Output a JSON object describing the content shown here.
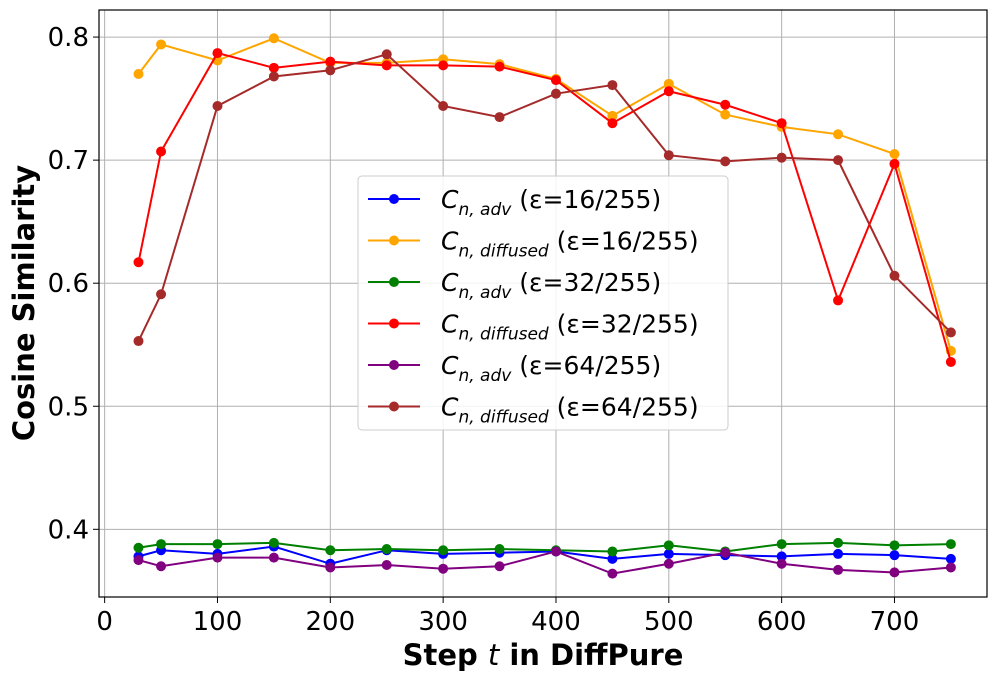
{
  "chart_data": {
    "type": "line",
    "title": "",
    "xlabel_prefix": "Step ",
    "xlabel_var": "t",
    "xlabel_suffix": " in DiffPure",
    "ylabel": "Cosine Similarity",
    "xlim": [
      -5,
      782
    ],
    "ylim": [
      0.345,
      0.822
    ],
    "xticks": [
      0,
      100,
      200,
      300,
      400,
      500,
      600,
      700
    ],
    "yticks": [
      0.4,
      0.5,
      0.6,
      0.7,
      0.8
    ],
    "xtick_labels": [
      "0",
      "100",
      "200",
      "300",
      "400",
      "500",
      "600",
      "700"
    ],
    "ytick_labels": [
      "0.4",
      "0.5",
      "0.6",
      "0.7",
      "0.8"
    ],
    "grid": true,
    "legend_position": "center",
    "x": [
      30,
      50,
      100,
      150,
      200,
      250,
      300,
      350,
      400,
      450,
      500,
      550,
      600,
      650,
      700,
      750
    ],
    "series": [
      {
        "name": "C_{n,adv} (ε=16/255)",
        "legend_main": "C",
        "legend_sub": "n, adv",
        "legend_eps": " (ε=16/255)",
        "color": "#0000ff",
        "values": [
          0.378,
          0.383,
          0.38,
          0.386,
          0.372,
          0.383,
          0.38,
          0.381,
          0.382,
          0.376,
          0.38,
          0.379,
          0.378,
          0.38,
          0.379,
          0.376
        ]
      },
      {
        "name": "C_{n,diffused} (ε=16/255)",
        "legend_main": "C",
        "legend_sub": "n, diffused",
        "legend_eps": " (ε=16/255)",
        "color": "#ffa500",
        "values": [
          0.77,
          0.794,
          0.781,
          0.799,
          0.779,
          0.779,
          0.782,
          0.778,
          0.766,
          0.736,
          0.762,
          0.737,
          0.727,
          0.721,
          0.705,
          0.545
        ]
      },
      {
        "name": "C_{n,adv} (ε=32/255)",
        "legend_main": "C",
        "legend_sub": "n, adv",
        "legend_eps": " (ε=32/255)",
        "color": "#008000",
        "values": [
          0.385,
          0.388,
          0.388,
          0.389,
          0.383,
          0.384,
          0.383,
          0.384,
          0.383,
          0.382,
          0.387,
          0.382,
          0.388,
          0.389,
          0.387,
          0.388
        ]
      },
      {
        "name": "C_{n,diffused} (ε=32/255)",
        "legend_main": "C",
        "legend_sub": "n, diffused",
        "legend_eps": " (ε=32/255)",
        "color": "#ff0000",
        "values": [
          0.617,
          0.707,
          0.787,
          0.775,
          0.78,
          0.777,
          0.777,
          0.776,
          0.765,
          0.73,
          0.756,
          0.745,
          0.73,
          0.586,
          0.697,
          0.536
        ]
      },
      {
        "name": "C_{n,adv} (ε=64/255)",
        "legend_main": "C",
        "legend_sub": "n, adv",
        "legend_eps": " (ε=64/255)",
        "color": "#800080",
        "values": [
          0.375,
          0.37,
          0.377,
          0.377,
          0.369,
          0.371,
          0.368,
          0.37,
          0.382,
          0.364,
          0.372,
          0.381,
          0.372,
          0.367,
          0.365,
          0.369
        ]
      },
      {
        "name": "C_{n,diffused} (ε=64/255)",
        "legend_main": "C",
        "legend_sub": "n, diffused",
        "legend_eps": " (ε=64/255)",
        "color": "#a52a2a",
        "values": [
          0.553,
          0.591,
          0.744,
          0.768,
          0.773,
          0.786,
          0.744,
          0.735,
          0.754,
          0.761,
          0.704,
          0.699,
          0.702,
          0.7,
          0.606,
          0.56
        ]
      }
    ]
  }
}
